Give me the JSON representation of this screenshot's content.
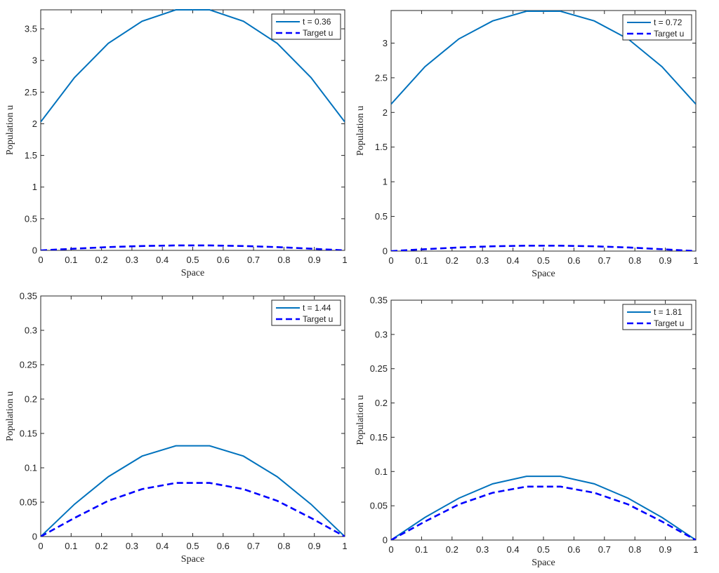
{
  "chart_data": [
    {
      "type": "line",
      "xlabel": "Space",
      "ylabel": "Population u",
      "xlim": [
        0,
        1
      ],
      "ylim": [
        0,
        3.8
      ],
      "xticks": [
        "0",
        "0.1",
        "0.2",
        "0.3",
        "0.4",
        "0.5",
        "0.6",
        "0.7",
        "0.8",
        "0.9",
        "1"
      ],
      "yticks": [
        "0",
        "0.5",
        "1",
        "1.5",
        "2",
        "2.5",
        "3",
        "3.5"
      ],
      "grid": false,
      "legend_position": "top-right",
      "x": [
        0,
        0.1111,
        0.2222,
        0.3333,
        0.4444,
        0.5556,
        0.6667,
        0.7778,
        0.8889,
        1
      ],
      "series": [
        {
          "name": "t = 0.36",
          "style": "solid",
          "color": "#0072BD",
          "values": [
            2.03,
            2.73,
            3.27,
            3.62,
            3.8,
            3.8,
            3.62,
            3.27,
            2.73,
            2.03
          ]
        },
        {
          "name": "Target u",
          "style": "dashed",
          "color": "#0000FF",
          "values": [
            0,
            0.027,
            0.052,
            0.069,
            0.078,
            0.078,
            0.069,
            0.052,
            0.027,
            0
          ]
        }
      ]
    },
    {
      "type": "line",
      "xlabel": "Space",
      "ylabel": "Population u",
      "xlim": [
        0,
        1
      ],
      "ylim": [
        0,
        3.47
      ],
      "xticks": [
        "0",
        "0.1",
        "0.2",
        "0.3",
        "0.4",
        "0.5",
        "0.6",
        "0.7",
        "0.8",
        "0.9",
        "1"
      ],
      "yticks": [
        "0",
        "0.5",
        "1",
        "1.5",
        "2",
        "2.5",
        "3"
      ],
      "grid": false,
      "legend_position": "top-right",
      "x": [
        0,
        0.1111,
        0.2222,
        0.3333,
        0.4444,
        0.5556,
        0.6667,
        0.7778,
        0.8889,
        1
      ],
      "series": [
        {
          "name": "t = 0.72",
          "style": "solid",
          "color": "#0072BD",
          "values": [
            2.12,
            2.66,
            3.06,
            3.32,
            3.46,
            3.46,
            3.32,
            3.06,
            2.66,
            2.12
          ]
        },
        {
          "name": "Target u",
          "style": "dashed",
          "color": "#0000FF",
          "values": [
            0,
            0.027,
            0.052,
            0.069,
            0.078,
            0.078,
            0.069,
            0.052,
            0.027,
            0
          ]
        }
      ]
    },
    {
      "type": "line",
      "xlabel": "Space",
      "ylabel": "Population u",
      "xlim": [
        0,
        1
      ],
      "ylim": [
        0,
        0.35
      ],
      "xticks": [
        "0",
        "0.1",
        "0.2",
        "0.3",
        "0.4",
        "0.5",
        "0.6",
        "0.7",
        "0.8",
        "0.9",
        "1"
      ],
      "yticks": [
        "0",
        "0.05",
        "0.1",
        "0.15",
        "0.2",
        "0.25",
        "0.3",
        "0.35"
      ],
      "grid": false,
      "legend_position": "top-right",
      "x": [
        0,
        0.1111,
        0.2222,
        0.3333,
        0.4444,
        0.5556,
        0.6667,
        0.7778,
        0.8889,
        1
      ],
      "series": [
        {
          "name": "t = 1.44",
          "style": "solid",
          "color": "#0072BD",
          "values": [
            0,
            0.047,
            0.087,
            0.117,
            0.132,
            0.132,
            0.117,
            0.087,
            0.047,
            0
          ]
        },
        {
          "name": "Target u",
          "style": "dashed",
          "color": "#0000FF",
          "values": [
            0,
            0.027,
            0.052,
            0.069,
            0.078,
            0.078,
            0.069,
            0.052,
            0.027,
            0
          ]
        }
      ]
    },
    {
      "type": "line",
      "xlabel": "Space",
      "ylabel": "Population u",
      "xlim": [
        0,
        1
      ],
      "ylim": [
        0,
        0.35
      ],
      "xticks": [
        "0",
        "0.1",
        "0.2",
        "0.3",
        "0.4",
        "0.5",
        "0.6",
        "0.7",
        "0.8",
        "0.9",
        "1"
      ],
      "yticks": [
        "0",
        "0.05",
        "0.1",
        "0.15",
        "0.2",
        "0.25",
        "0.3",
        "0.35"
      ],
      "grid": false,
      "legend_position": "top-right",
      "x": [
        0,
        0.1111,
        0.2222,
        0.3333,
        0.4444,
        0.5556,
        0.6667,
        0.7778,
        0.8889,
        1
      ],
      "series": [
        {
          "name": "t = 1.81",
          "style": "solid",
          "color": "#0072BD",
          "values": [
            0,
            0.033,
            0.061,
            0.082,
            0.093,
            0.093,
            0.082,
            0.061,
            0.033,
            0
          ]
        },
        {
          "name": "Target u",
          "style": "dashed",
          "color": "#0000FF",
          "values": [
            0,
            0.027,
            0.052,
            0.069,
            0.078,
            0.078,
            0.069,
            0.052,
            0.027,
            0
          ]
        }
      ]
    }
  ]
}
